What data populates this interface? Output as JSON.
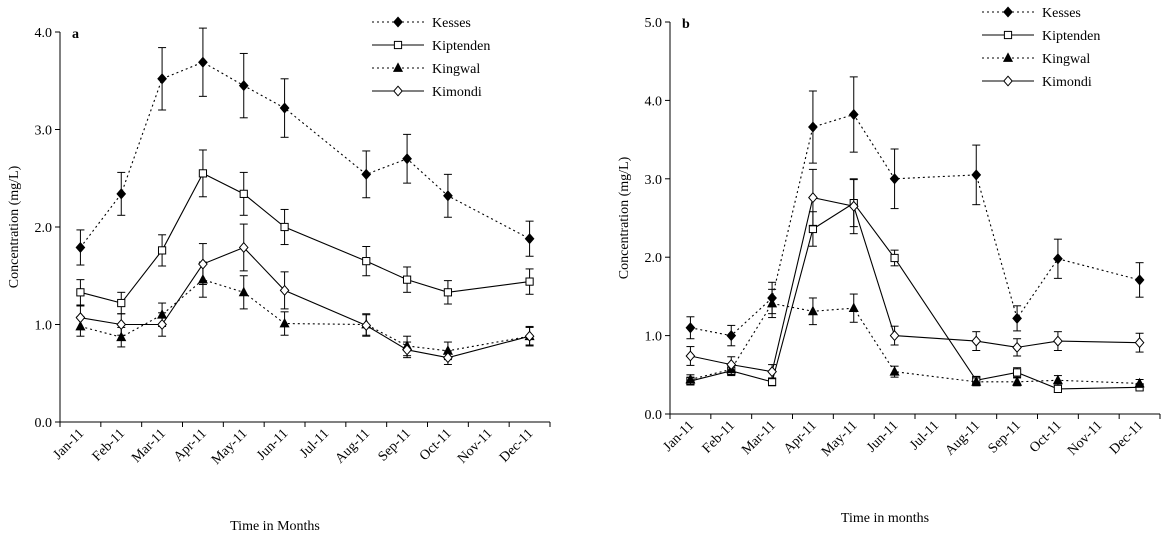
{
  "chart_data": [
    {
      "type": "line",
      "panel_label": "a",
      "xlabel": "Time in Months",
      "ylabel": "Concentration (mg/L)",
      "ylim": [
        0,
        4
      ],
      "yticks": [
        "0.0",
        "1.0",
        "2.0",
        "3.0",
        "4.0"
      ],
      "categories": [
        "Jan-11",
        "Feb-11",
        "Mar-11",
        "Apr-11",
        "May-11",
        "Jun-11",
        "Jul-11",
        "Aug-11",
        "Sep-11",
        "Oct-11",
        "Nov-11",
        "Dec-11"
      ],
      "legend_position": "top-right",
      "series": [
        {
          "name": "Kesses",
          "line": "dotted",
          "marker": "diamond-filled",
          "x": [
            "Jan-11",
            "Feb-11",
            "Mar-11",
            "Apr-11",
            "May-11",
            "Jun-11",
            "Aug-11",
            "Sep-11",
            "Oct-11",
            "Dec-11"
          ],
          "values": [
            1.79,
            2.34,
            3.52,
            3.69,
            3.45,
            3.22,
            2.54,
            2.7,
            2.32,
            1.88
          ],
          "errors": [
            0.18,
            0.22,
            0.32,
            0.35,
            0.33,
            0.3,
            0.24,
            0.25,
            0.22,
            0.18
          ]
        },
        {
          "name": "Kiptenden",
          "line": "solid",
          "marker": "square-open",
          "x": [
            "Jan-11",
            "Feb-11",
            "Mar-11",
            "Apr-11",
            "May-11",
            "Jun-11",
            "Aug-11",
            "Sep-11",
            "Oct-11",
            "Dec-11"
          ],
          "values": [
            1.33,
            1.22,
            1.76,
            2.55,
            2.34,
            2.0,
            1.65,
            1.46,
            1.33,
            1.44
          ],
          "errors": [
            0.13,
            0.11,
            0.16,
            0.24,
            0.22,
            0.18,
            0.15,
            0.13,
            0.12,
            0.13
          ]
        },
        {
          "name": "Kingwal",
          "line": "dotted",
          "marker": "triangle-filled",
          "x": [
            "Jan-11",
            "Feb-11",
            "Mar-11",
            "Apr-11",
            "May-11",
            "Jun-11",
            "Aug-11",
            "Sep-11",
            "Oct-11",
            "Dec-11"
          ],
          "values": [
            0.98,
            0.87,
            1.1,
            1.46,
            1.33,
            1.01,
            1.0,
            0.78,
            0.73,
            0.88
          ],
          "errors": [
            0.1,
            0.1,
            0.12,
            0.18,
            0.17,
            0.12,
            0.11,
            0.1,
            0.09,
            0.1
          ]
        },
        {
          "name": "Kimondi",
          "line": "solid",
          "marker": "diamond-open",
          "x": [
            "Jan-11",
            "Feb-11",
            "Mar-11",
            "Apr-11",
            "May-11",
            "Jun-11",
            "Aug-11",
            "Sep-11",
            "Oct-11",
            "Dec-11"
          ],
          "values": [
            1.07,
            1.0,
            1.0,
            1.62,
            1.79,
            1.35,
            0.99,
            0.74,
            0.66,
            0.88
          ],
          "errors": [
            0.12,
            0.11,
            0.12,
            0.21,
            0.24,
            0.19,
            0.11,
            0.08,
            0.07,
            0.09
          ]
        }
      ]
    },
    {
      "type": "line",
      "panel_label": "b",
      "xlabel": "Time in months",
      "ylabel": "Concentration (mg/L)",
      "ylim": [
        0,
        5
      ],
      "yticks": [
        "0.0",
        "1.0",
        "2.0",
        "3.0",
        "4.0",
        "5.0"
      ],
      "categories": [
        "Jan-11",
        "Feb-11",
        "Mar-11",
        "Apr-11",
        "May-11",
        "Jun-11",
        "Jul-11",
        "Aug-11",
        "Sep-11",
        "Oct-11",
        "Nov-11",
        "Dec-11"
      ],
      "legend_position": "top-right",
      "series": [
        {
          "name": "Kesses",
          "line": "dotted",
          "marker": "diamond-filled",
          "x": [
            "Jan-11",
            "Feb-11",
            "Mar-11",
            "Apr-11",
            "May-11",
            "Jun-11",
            "Aug-11",
            "Sep-11",
            "Oct-11",
            "Dec-11"
          ],
          "values": [
            1.1,
            1.0,
            1.48,
            3.66,
            3.82,
            3.0,
            3.05,
            1.22,
            1.98,
            1.71
          ],
          "errors": [
            0.14,
            0.13,
            0.2,
            0.46,
            0.48,
            0.38,
            0.38,
            0.16,
            0.25,
            0.22
          ]
        },
        {
          "name": "Kiptenden",
          "line": "solid",
          "marker": "square-open",
          "x": [
            "Jan-11",
            "Feb-11",
            "Mar-11",
            "Apr-11",
            "May-11",
            "Jun-11",
            "Aug-11",
            "Sep-11",
            "Oct-11",
            "Dec-11"
          ],
          "values": [
            0.42,
            0.55,
            0.41,
            2.36,
            2.69,
            1.99,
            0.43,
            0.53,
            0.32,
            0.34
          ],
          "errors": [
            0.05,
            0.06,
            0.05,
            0.22,
            0.3,
            0.1,
            0.05,
            0.06,
            0.04,
            0.04
          ]
        },
        {
          "name": "Kingwal",
          "line": "dotted",
          "marker": "triangle-filled",
          "x": [
            "Jan-11",
            "Feb-11",
            "Mar-11",
            "Apr-11",
            "May-11",
            "Jun-11",
            "Aug-11",
            "Sep-11",
            "Oct-11",
            "Dec-11"
          ],
          "values": [
            0.44,
            0.57,
            1.41,
            1.31,
            1.35,
            0.54,
            0.41,
            0.41,
            0.43,
            0.39
          ],
          "errors": [
            0.06,
            0.07,
            0.18,
            0.17,
            0.18,
            0.07,
            0.05,
            0.05,
            0.06,
            0.05
          ]
        },
        {
          "name": "Kimondi",
          "line": "solid",
          "marker": "diamond-open",
          "x": [
            "Jan-11",
            "Feb-11",
            "Mar-11",
            "Apr-11",
            "May-11",
            "Jun-11",
            "Aug-11",
            "Sep-11",
            "Oct-11",
            "Dec-11"
          ],
          "values": [
            0.74,
            0.63,
            0.54,
            2.76,
            2.65,
            1.0,
            0.93,
            0.85,
            0.93,
            0.91
          ],
          "errors": [
            0.12,
            0.1,
            0.09,
            0.36,
            0.35,
            0.12,
            0.12,
            0.11,
            0.12,
            0.12
          ]
        }
      ]
    }
  ]
}
